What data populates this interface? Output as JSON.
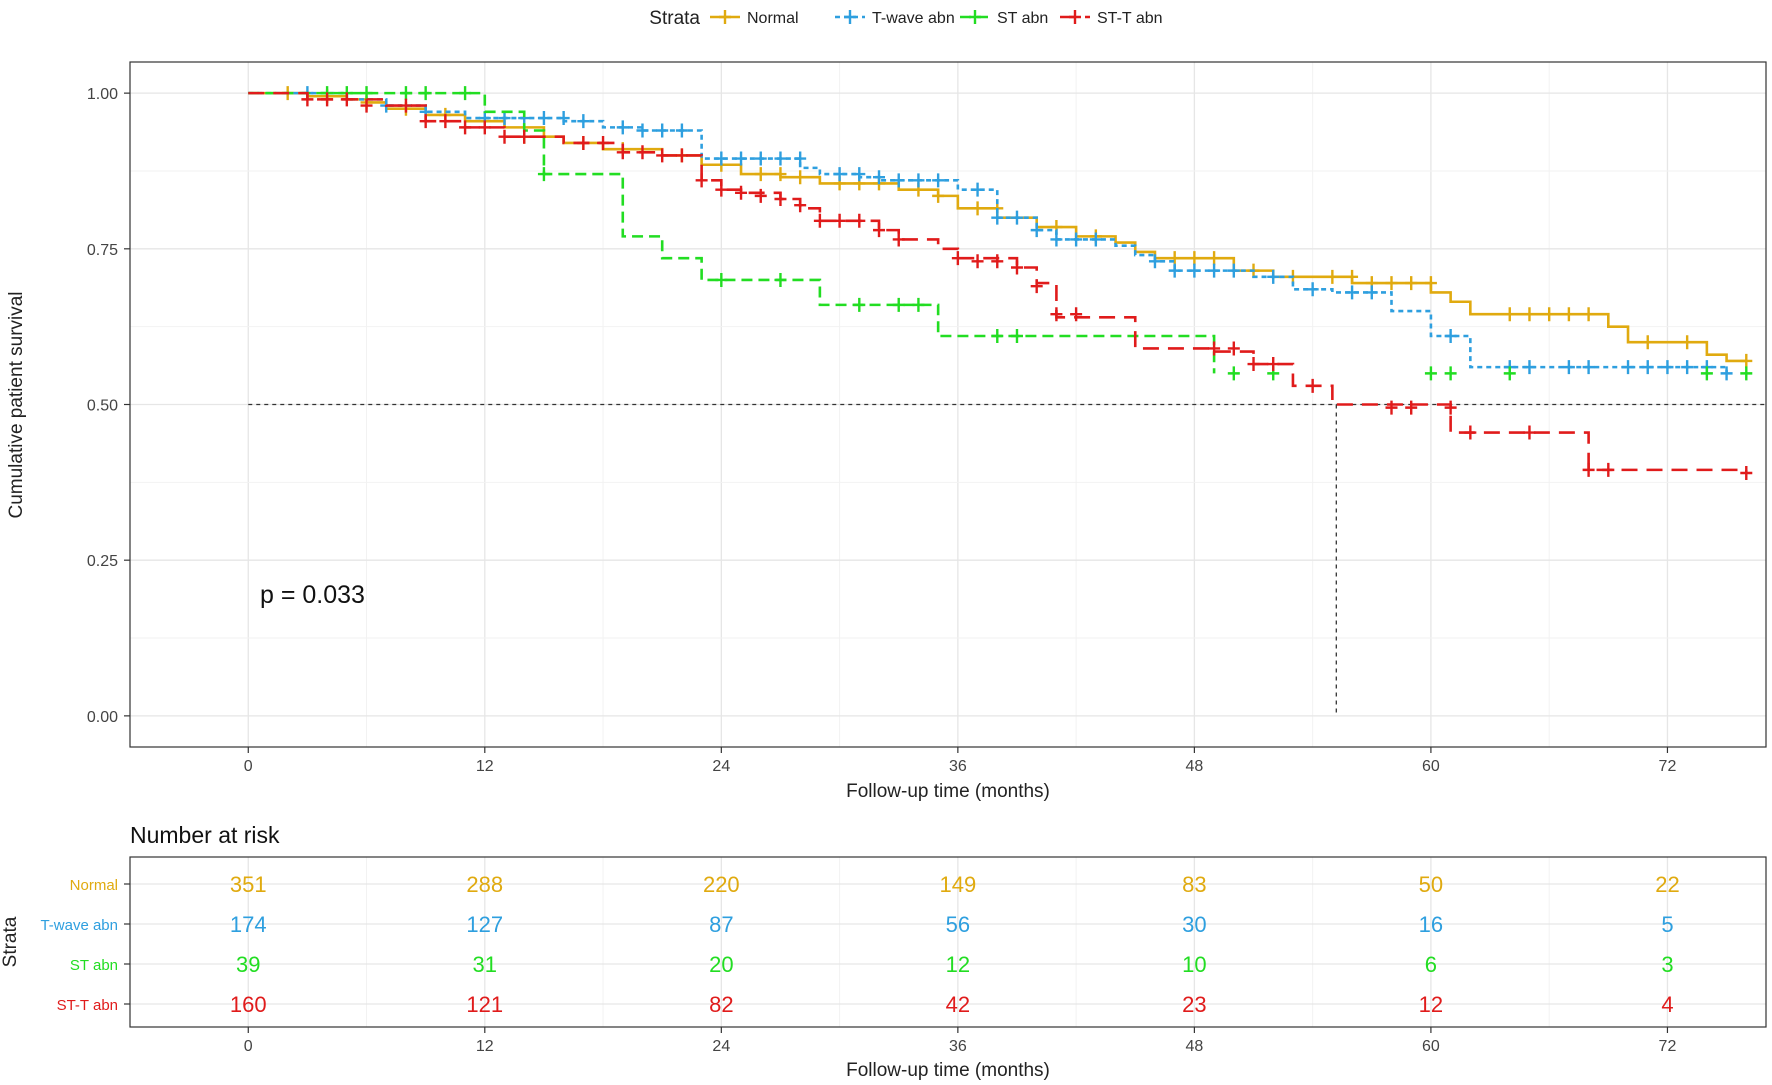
{
  "legend": {
    "title": "Strata",
    "items": [
      {
        "label": "Normal",
        "color": "#E0AA0F",
        "dash": "solid"
      },
      {
        "label": "T-wave abn",
        "color": "#2E9FDF",
        "dash": "dotted"
      },
      {
        "label": "ST abn",
        "color": "#22DD22",
        "dash": "dashed"
      },
      {
        "label": "ST-T abn",
        "color": "#E01B1B",
        "dash": "longdash"
      }
    ]
  },
  "pvalue_text": "p = 0.033",
  "chart_data": {
    "type": "line",
    "subtype": "kaplan-meier step",
    "title": "",
    "xlabel": "Follow-up time (months)",
    "ylabel": "Cumulative patient survival",
    "xlim": [
      -6,
      77
    ],
    "ylim": [
      -0.05,
      1.05
    ],
    "xticks": [
      0,
      12,
      24,
      36,
      48,
      60,
      72
    ],
    "yticks": [
      0.0,
      0.25,
      0.5,
      0.75,
      1.0
    ],
    "ytick_labels": [
      "0.00",
      "0.25",
      "0.50",
      "0.75",
      "1.00"
    ],
    "grid": true,
    "legend_position": "top",
    "median_reference": {
      "y": 0.5,
      "x": 55.2
    },
    "series": [
      {
        "name": "Normal",
        "color": "#E0AA0F",
        "steps": [
          [
            0,
            1.0
          ],
          [
            3,
            0.995
          ],
          [
            5,
            0.99
          ],
          [
            6,
            0.985
          ],
          [
            7,
            0.975
          ],
          [
            9,
            0.965
          ],
          [
            11,
            0.955
          ],
          [
            13,
            0.945
          ],
          [
            15,
            0.93
          ],
          [
            16,
            0.92
          ],
          [
            18,
            0.91
          ],
          [
            21,
            0.9
          ],
          [
            23,
            0.885
          ],
          [
            25,
            0.87
          ],
          [
            27,
            0.865
          ],
          [
            29,
            0.855
          ],
          [
            33,
            0.845
          ],
          [
            35,
            0.835
          ],
          [
            36,
            0.815
          ],
          [
            38,
            0.8
          ],
          [
            40,
            0.785
          ],
          [
            42,
            0.77
          ],
          [
            44,
            0.76
          ],
          [
            45,
            0.745
          ],
          [
            46,
            0.735
          ],
          [
            50,
            0.715
          ],
          [
            52,
            0.705
          ],
          [
            56,
            0.695
          ],
          [
            60,
            0.68
          ],
          [
            61,
            0.665
          ],
          [
            62,
            0.645
          ],
          [
            69,
            0.625
          ],
          [
            70,
            0.6
          ],
          [
            74,
            0.58
          ],
          [
            75,
            0.57
          ],
          [
            76,
            0.57
          ]
        ],
        "censor": [
          [
            2,
            1.0
          ],
          [
            4,
            0.995
          ],
          [
            6,
            0.985
          ],
          [
            8,
            0.975
          ],
          [
            10,
            0.965
          ],
          [
            14,
            0.93
          ],
          [
            17,
            0.92
          ],
          [
            19,
            0.91
          ],
          [
            22,
            0.9
          ],
          [
            24,
            0.885
          ],
          [
            26,
            0.87
          ],
          [
            27,
            0.87
          ],
          [
            28,
            0.865
          ],
          [
            30,
            0.855
          ],
          [
            31,
            0.855
          ],
          [
            32,
            0.855
          ],
          [
            34,
            0.845
          ],
          [
            35,
            0.835
          ],
          [
            37,
            0.815
          ],
          [
            38,
            0.815
          ],
          [
            41,
            0.785
          ],
          [
            43,
            0.77
          ],
          [
            47,
            0.735
          ],
          [
            48,
            0.735
          ],
          [
            49,
            0.735
          ],
          [
            51,
            0.715
          ],
          [
            53,
            0.705
          ],
          [
            55,
            0.705
          ],
          [
            56,
            0.705
          ],
          [
            57,
            0.695
          ],
          [
            58,
            0.695
          ],
          [
            59,
            0.695
          ],
          [
            60,
            0.695
          ],
          [
            64,
            0.645
          ],
          [
            65,
            0.645
          ],
          [
            66,
            0.645
          ],
          [
            67,
            0.645
          ],
          [
            68,
            0.645
          ],
          [
            71,
            0.6
          ],
          [
            73,
            0.6
          ],
          [
            76,
            0.57
          ]
        ]
      },
      {
        "name": "T-wave abn",
        "color": "#2E9FDF",
        "steps": [
          [
            0,
            1.0
          ],
          [
            5,
            0.99
          ],
          [
            7,
            0.98
          ],
          [
            9,
            0.97
          ],
          [
            11,
            0.96
          ],
          [
            16,
            0.955
          ],
          [
            18,
            0.945
          ],
          [
            20,
            0.94
          ],
          [
            23,
            0.895
          ],
          [
            28,
            0.88
          ],
          [
            29,
            0.87
          ],
          [
            31,
            0.865
          ],
          [
            32,
            0.86
          ],
          [
            36,
            0.845
          ],
          [
            38,
            0.8
          ],
          [
            40,
            0.78
          ],
          [
            41,
            0.765
          ],
          [
            44,
            0.755
          ],
          [
            45,
            0.74
          ],
          [
            46,
            0.73
          ],
          [
            47,
            0.715
          ],
          [
            51,
            0.705
          ],
          [
            53,
            0.685
          ],
          [
            55,
            0.68
          ],
          [
            58,
            0.65
          ],
          [
            60,
            0.61
          ],
          [
            62,
            0.56
          ],
          [
            75,
            0.55
          ]
        ],
        "censor": [
          [
            3,
            1.0
          ],
          [
            7,
            0.98
          ],
          [
            9,
            0.97
          ],
          [
            12,
            0.96
          ],
          [
            13,
            0.96
          ],
          [
            14,
            0.96
          ],
          [
            15,
            0.96
          ],
          [
            16,
            0.96
          ],
          [
            17,
            0.955
          ],
          [
            19,
            0.945
          ],
          [
            20,
            0.94
          ],
          [
            21,
            0.94
          ],
          [
            22,
            0.94
          ],
          [
            24,
            0.895
          ],
          [
            25,
            0.895
          ],
          [
            26,
            0.895
          ],
          [
            27,
            0.895
          ],
          [
            28,
            0.895
          ],
          [
            30,
            0.87
          ],
          [
            31,
            0.87
          ],
          [
            32,
            0.865
          ],
          [
            33,
            0.86
          ],
          [
            34,
            0.86
          ],
          [
            35,
            0.86
          ],
          [
            37,
            0.845
          ],
          [
            38,
            0.8
          ],
          [
            39,
            0.8
          ],
          [
            40,
            0.78
          ],
          [
            41,
            0.765
          ],
          [
            42,
            0.765
          ],
          [
            43,
            0.765
          ],
          [
            46,
            0.73
          ],
          [
            47,
            0.715
          ],
          [
            48,
            0.715
          ],
          [
            49,
            0.715
          ],
          [
            50,
            0.715
          ],
          [
            52,
            0.705
          ],
          [
            54,
            0.685
          ],
          [
            56,
            0.68
          ],
          [
            57,
            0.68
          ],
          [
            61,
            0.61
          ],
          [
            64,
            0.56
          ],
          [
            65,
            0.56
          ],
          [
            67,
            0.56
          ],
          [
            68,
            0.56
          ],
          [
            70,
            0.56
          ],
          [
            71,
            0.56
          ],
          [
            72,
            0.56
          ],
          [
            73,
            0.56
          ],
          [
            74,
            0.56
          ],
          [
            75,
            0.55
          ]
        ]
      },
      {
        "name": "ST abn",
        "color": "#22DD22",
        "steps": [
          [
            0,
            1.0
          ],
          [
            12,
            0.97
          ],
          [
            14,
            0.94
          ],
          [
            15,
            0.87
          ],
          [
            19,
            0.77
          ],
          [
            21,
            0.735
          ],
          [
            23,
            0.7
          ],
          [
            29,
            0.66
          ],
          [
            35,
            0.61
          ],
          [
            49,
            0.55
          ]
        ],
        "censor": [
          [
            4,
            1.0
          ],
          [
            5,
            1.0
          ],
          [
            6,
            1.0
          ],
          [
            8,
            1.0
          ],
          [
            9,
            1.0
          ],
          [
            11,
            1.0
          ],
          [
            15,
            0.87
          ],
          [
            24,
            0.7
          ],
          [
            27,
            0.7
          ],
          [
            31,
            0.66
          ],
          [
            33,
            0.66
          ],
          [
            34,
            0.66
          ],
          [
            38,
            0.61
          ],
          [
            39,
            0.61
          ],
          [
            50,
            0.55
          ],
          [
            52,
            0.55
          ],
          [
            60,
            0.55
          ],
          [
            61,
            0.55
          ],
          [
            64,
            0.55
          ],
          [
            74,
            0.55
          ],
          [
            76,
            0.55
          ]
        ]
      },
      {
        "name": "ST-T abn",
        "color": "#E01B1B",
        "steps": [
          [
            0,
            1.0
          ],
          [
            3,
            0.99
          ],
          [
            7,
            0.98
          ],
          [
            9,
            0.955
          ],
          [
            11,
            0.945
          ],
          [
            13,
            0.93
          ],
          [
            16,
            0.92
          ],
          [
            19,
            0.905
          ],
          [
            21,
            0.9
          ],
          [
            23,
            0.86
          ],
          [
            24,
            0.845
          ],
          [
            25,
            0.84
          ],
          [
            27,
            0.83
          ],
          [
            28,
            0.815
          ],
          [
            29,
            0.795
          ],
          [
            32,
            0.78
          ],
          [
            33,
            0.765
          ],
          [
            35,
            0.75
          ],
          [
            36,
            0.735
          ],
          [
            39,
            0.72
          ],
          [
            40,
            0.695
          ],
          [
            41,
            0.64
          ],
          [
            45,
            0.59
          ],
          [
            49,
            0.585
          ],
          [
            51,
            0.565
          ],
          [
            53,
            0.53
          ],
          [
            55,
            0.5
          ],
          [
            61,
            0.455
          ],
          [
            68,
            0.395
          ],
          [
            76,
            0.39
          ]
        ],
        "censor": [
          [
            3,
            0.99
          ],
          [
            4,
            0.99
          ],
          [
            5,
            0.99
          ],
          [
            6,
            0.98
          ],
          [
            8,
            0.98
          ],
          [
            9,
            0.955
          ],
          [
            10,
            0.955
          ],
          [
            11,
            0.945
          ],
          [
            12,
            0.945
          ],
          [
            13,
            0.93
          ],
          [
            14,
            0.93
          ],
          [
            17,
            0.92
          ],
          [
            18,
            0.92
          ],
          [
            19,
            0.905
          ],
          [
            20,
            0.905
          ],
          [
            21,
            0.9
          ],
          [
            22,
            0.9
          ],
          [
            23,
            0.86
          ],
          [
            24,
            0.845
          ],
          [
            25,
            0.84
          ],
          [
            26,
            0.835
          ],
          [
            27,
            0.83
          ],
          [
            28,
            0.82
          ],
          [
            29,
            0.795
          ],
          [
            30,
            0.795
          ],
          [
            31,
            0.795
          ],
          [
            32,
            0.78
          ],
          [
            33,
            0.765
          ],
          [
            36,
            0.735
          ],
          [
            37,
            0.73
          ],
          [
            38,
            0.73
          ],
          [
            39,
            0.72
          ],
          [
            40,
            0.69
          ],
          [
            41,
            0.645
          ],
          [
            42,
            0.645
          ],
          [
            49,
            0.59
          ],
          [
            50,
            0.59
          ],
          [
            51,
            0.565
          ],
          [
            52,
            0.565
          ],
          [
            54,
            0.53
          ],
          [
            58,
            0.495
          ],
          [
            59,
            0.495
          ],
          [
            61,
            0.495
          ],
          [
            62,
            0.455
          ],
          [
            65,
            0.455
          ],
          [
            68,
            0.395
          ],
          [
            69,
            0.395
          ],
          [
            76,
            0.39
          ]
        ]
      }
    ]
  },
  "risk_table": {
    "title": "Number at risk",
    "ylabel": "Strata",
    "xlabel": "Follow-up time (months)",
    "times": [
      0,
      12,
      24,
      36,
      48,
      60,
      72
    ],
    "rows": [
      {
        "label": "Normal",
        "color": "#E0AA0F",
        "values": [
          "351",
          "288",
          "220",
          "149",
          "83",
          "50",
          "22"
        ]
      },
      {
        "label": "T-wave abn",
        "color": "#2E9FDF",
        "values": [
          "174",
          "127",
          "87",
          "56",
          "30",
          "16",
          "5"
        ]
      },
      {
        "label": "ST abn",
        "color": "#22DD22",
        "values": [
          "39",
          "31",
          "20",
          "12",
          "10",
          "6",
          "3"
        ]
      },
      {
        "label": "ST-T abn",
        "color": "#E01B1B",
        "values": [
          "160",
          "121",
          "82",
          "42",
          "23",
          "12",
          "4"
        ]
      }
    ]
  }
}
